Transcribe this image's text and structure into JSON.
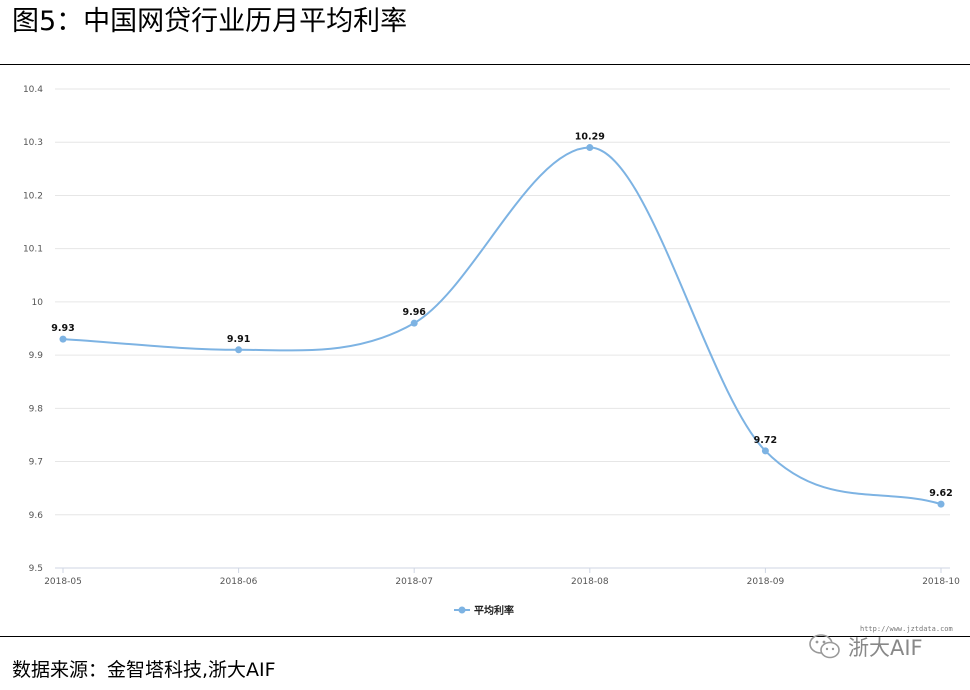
{
  "figure": {
    "title": "图5：中国网贷行业历月平均利率",
    "source": "数据来源：金智塔科技,浙大AIF",
    "watermark_url": "http://www.jztdata.com",
    "watermark_text": "浙大AIF",
    "watermark_icon": "wechat-icon"
  },
  "chart_data": {
    "type": "line",
    "title": "",
    "xlabel": "",
    "ylabel": "",
    "categories": [
      "2018-05",
      "2018-06",
      "2018-07",
      "2018-08",
      "2018-09",
      "2018-10"
    ],
    "series": [
      {
        "name": "平均利率",
        "values": [
          9.93,
          9.91,
          9.96,
          10.29,
          9.72,
          9.62
        ],
        "color": "#7db3e3"
      }
    ],
    "data_labels": [
      "9.93",
      "9.91",
      "9.96",
      "10.29",
      "9.72",
      "9.62"
    ],
    "ylim": [
      9.5,
      10.4
    ],
    "yticks": [
      "9.5",
      "9.6",
      "9.7",
      "9.8",
      "9.9",
      "10",
      "10.1",
      "10.2",
      "10.3",
      "10.4"
    ],
    "grid": true,
    "smooth": true,
    "legend_position": "bottom-center",
    "grid_color": "#e6e6e6",
    "axis_color": "#cfd6e3"
  }
}
